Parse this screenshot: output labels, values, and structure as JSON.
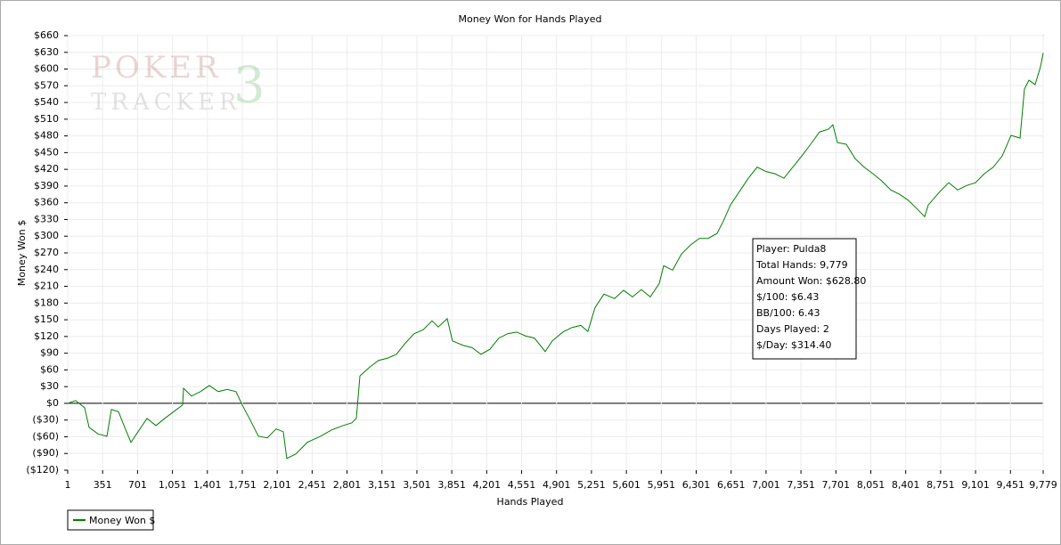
{
  "chart_data": {
    "type": "line",
    "title": "Money Won for Hands Played",
    "x_label": "Hands Played",
    "y_label": "Money Won $",
    "watermark": [
      "POKER",
      "TRACKER",
      "3"
    ],
    "annotations": [
      "Player: Pulda8",
      "Total Hands: 9,779",
      "Amount Won: $628.80",
      "$/100: $6.43",
      "BB/100: 6.43",
      "Days Played: 2",
      "$/Day: $314.40"
    ],
    "legend": "bottom-left",
    "grid": true,
    "xlim": [
      1,
      9779
    ],
    "ylim": [
      -120,
      660
    ],
    "xticks": [
      1,
      351,
      701,
      {
        "value": 1051,
        "label": "1,051"
      },
      {
        "value": 1401,
        "label": "1,401"
      },
      {
        "value": 1751,
        "label": "1,751"
      },
      {
        "value": 2101,
        "label": "2,101"
      },
      {
        "value": 2451,
        "label": "2,451"
      },
      {
        "value": 2801,
        "label": "2,801"
      },
      {
        "value": 3151,
        "label": "3,151"
      },
      {
        "value": 3501,
        "label": "3,501"
      },
      {
        "value": 3851,
        "label": "3,851"
      },
      {
        "value": 4201,
        "label": "4,201"
      },
      {
        "value": 4551,
        "label": "4,551"
      },
      {
        "value": 4901,
        "label": "4,901"
      },
      {
        "value": 5251,
        "label": "5,251"
      },
      {
        "value": 5601,
        "label": "5,601"
      },
      {
        "value": 5951,
        "label": "5,951"
      },
      {
        "value": 6301,
        "label": "6,301"
      },
      {
        "value": 6651,
        "label": "6,651"
      },
      {
        "value": 7001,
        "label": "7,001"
      },
      {
        "value": 7351,
        "label": "7,351"
      },
      {
        "value": 7701,
        "label": "7,701"
      },
      {
        "value": 8051,
        "label": "8,051"
      },
      {
        "value": 8401,
        "label": "8,401"
      },
      {
        "value": 8751,
        "label": "8,751"
      },
      {
        "value": 9101,
        "label": "9,101"
      },
      {
        "value": 9451,
        "label": "9,451"
      },
      {
        "value": 9779,
        "label": "9,779"
      }
    ],
    "yticks": [
      {
        "value": -120,
        "label": "($120)"
      },
      {
        "value": -90,
        "label": "($90)"
      },
      {
        "value": -60,
        "label": "($60)"
      },
      {
        "value": -30,
        "label": "($30)"
      },
      {
        "value": 0,
        "label": "$0"
      },
      {
        "value": 30,
        "label": "$30"
      },
      {
        "value": 60,
        "label": "$60"
      },
      {
        "value": 90,
        "label": "$90"
      },
      {
        "value": 120,
        "label": "$120"
      },
      {
        "value": 150,
        "label": "$150"
      },
      {
        "value": 180,
        "label": "$180"
      },
      {
        "value": 210,
        "label": "$210"
      },
      {
        "value": 240,
        "label": "$240"
      },
      {
        "value": 270,
        "label": "$270"
      },
      {
        "value": 300,
        "label": "$300"
      },
      {
        "value": 330,
        "label": "$330"
      },
      {
        "value": 360,
        "label": "$360"
      },
      {
        "value": 390,
        "label": "$390"
      },
      {
        "value": 420,
        "label": "$420"
      },
      {
        "value": 450,
        "label": "$450"
      },
      {
        "value": 480,
        "label": "$480"
      },
      {
        "value": 510,
        "label": "$510"
      },
      {
        "value": 540,
        "label": "$540"
      },
      {
        "value": 570,
        "label": "$570"
      },
      {
        "value": 600,
        "label": "$600"
      },
      {
        "value": 630,
        "label": "$630"
      },
      {
        "value": 660,
        "label": "$660"
      }
    ],
    "x": [
      1,
      81,
      171,
      215,
      305,
      394,
      439,
      510,
      572,
      635,
      706,
      796,
      885,
      974,
      1063,
      1153,
      1162,
      1242,
      1331,
      1421,
      1510,
      1599,
      1688,
      1751,
      1822,
      1912,
      2001,
      2090,
      2162,
      2197,
      2287,
      2403,
      2537,
      2644,
      2760,
      2849,
      2894,
      2930,
      3028,
      3117,
      3206,
      3296,
      3385,
      3474,
      3564,
      3653,
      3715,
      3805,
      3858,
      3965,
      4054,
      4144,
      4233,
      4322,
      4412,
      4501,
      4590,
      4680,
      4787,
      4858,
      4965,
      5055,
      5144,
      5215,
      5287,
      5376,
      5483,
      5573,
      5662,
      5751,
      5841,
      5930,
      5975,
      6064,
      6153,
      6243,
      6332,
      6421,
      6510,
      6573,
      6644,
      6734,
      6823,
      6912,
      7001,
      7091,
      7180,
      7269,
      7359,
      7448,
      7537,
      7627,
      7671,
      7716,
      7805,
      7895,
      7984,
      8073,
      8162,
      8252,
      8341,
      8430,
      8520,
      8591,
      8627,
      8743,
      8832,
      8922,
      9011,
      9100,
      9189,
      9279,
      9368,
      9457,
      9547,
      9591,
      9636,
      9698,
      9752,
      9779
    ],
    "series": [
      {
        "name": "Money Won $",
        "color": "#008000",
        "values": [
          0,
          5,
          -8,
          -43,
          -55,
          -59,
          -11,
          -15,
          -43,
          -70,
          -51,
          -27,
          -40,
          -27,
          -15,
          -3,
          27,
          13,
          21,
          32,
          21,
          25,
          21,
          -3,
          -27,
          -59,
          -62,
          -46,
          -51,
          -99,
          -91,
          -70,
          -59,
          -48,
          -40,
          -35,
          -27,
          49,
          65,
          77,
          81,
          88,
          108,
          125,
          132,
          148,
          137,
          152,
          112,
          104,
          100,
          88,
          97,
          117,
          125,
          128,
          121,
          117,
          93,
          112,
          128,
          136,
          140,
          129,
          172,
          196,
          188,
          203,
          191,
          204,
          191,
          215,
          247,
          239,
          268,
          284,
          296,
          296,
          305,
          327,
          356,
          380,
          404,
          424,
          416,
          412,
          404,
          424,
          444,
          465,
          487,
          492,
          500,
          468,
          465,
          439,
          424,
          412,
          399,
          383,
          375,
          364,
          348,
          335,
          356,
          380,
          396,
          383,
          391,
          396,
          412,
          424,
          444,
          481,
          476,
          564,
          580,
          572,
          604,
          628.8
        ]
      }
    ]
  }
}
